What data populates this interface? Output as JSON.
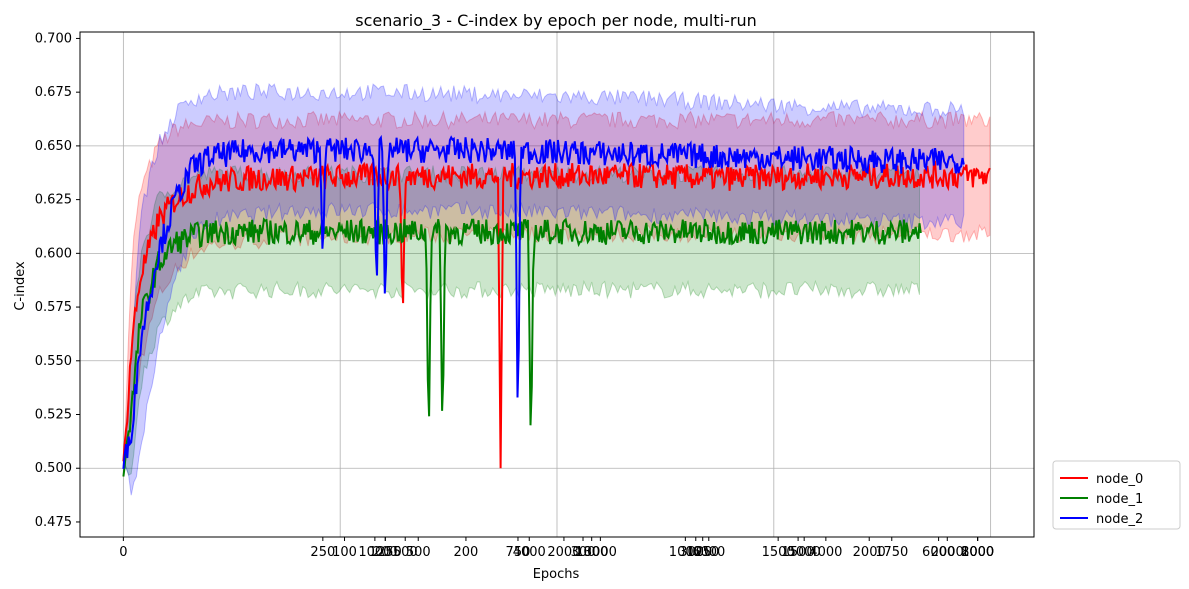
{
  "chart_data": {
    "type": "line",
    "title": "scenario_3 - C-index by epoch per node, multi-run",
    "xlabel": "Epochs",
    "ylabel": "C-index",
    "grid": true,
    "legend_placement": "outside-right-bottom",
    "x_ticks": [
      "0",
      "250",
      "100",
      "1000",
      "200",
      "500",
      "1250",
      "500",
      "200",
      "750",
      "4000",
      "2000",
      "300",
      "1000",
      "3000",
      "1000",
      "3000",
      "6000",
      "1250",
      "1500",
      "1500",
      "5000",
      "4000",
      "2000",
      "1750",
      "6000",
      "2000",
      "1000",
      "8000",
      "2000"
    ],
    "y_ticks": [
      "0.475",
      "0.500",
      "0.525",
      "0.550",
      "0.575",
      "0.600",
      "0.625",
      "0.650",
      "0.675",
      "0.700"
    ],
    "series": [
      {
        "name": "node_0",
        "color": "#ff0000",
        "x": [
          0,
          10,
          20,
          40,
          60,
          80,
          100,
          150,
          200,
          300,
          400,
          500,
          600,
          700,
          800,
          900,
          1000
        ],
        "mean": [
          0.5,
          0.56,
          0.59,
          0.615,
          0.625,
          0.63,
          0.633,
          0.635,
          0.635,
          0.636,
          0.636,
          0.636,
          0.636,
          0.635,
          0.636,
          0.636,
          0.636
        ],
        "upper": [
          0.5,
          0.6,
          0.63,
          0.65,
          0.658,
          0.66,
          0.661,
          0.662,
          0.662,
          0.662,
          0.662,
          0.662,
          0.662,
          0.662,
          0.662,
          0.662,
          0.662
        ],
        "lower": [
          0.5,
          0.52,
          0.55,
          0.58,
          0.592,
          0.6,
          0.604,
          0.606,
          0.607,
          0.608,
          0.609,
          0.609,
          0.609,
          0.609,
          0.609,
          0.609,
          0.609
        ]
      },
      {
        "name": "node_1",
        "color": "#008000",
        "x": [
          0,
          10,
          20,
          40,
          60,
          80,
          100,
          150,
          200,
          300,
          400,
          500,
          600,
          700,
          800,
          920
        ],
        "mean": [
          0.5,
          0.53,
          0.57,
          0.595,
          0.605,
          0.608,
          0.61,
          0.61,
          0.61,
          0.61,
          0.61,
          0.61,
          0.61,
          0.61,
          0.61,
          0.61
        ],
        "upper": [
          0.5,
          0.56,
          0.6,
          0.625,
          0.632,
          0.635,
          0.637,
          0.637,
          0.637,
          0.637,
          0.637,
          0.637,
          0.637,
          0.637,
          0.637,
          0.637
        ],
        "lower": [
          0.5,
          0.5,
          0.54,
          0.565,
          0.575,
          0.58,
          0.582,
          0.583,
          0.583,
          0.583,
          0.583,
          0.583,
          0.583,
          0.583,
          0.583,
          0.583
        ]
      },
      {
        "name": "node_2",
        "color": "#0000ff",
        "x": [
          0,
          10,
          20,
          40,
          60,
          80,
          100,
          150,
          200,
          300,
          400,
          500,
          600,
          700,
          800,
          900,
          970
        ],
        "mean": [
          0.5,
          0.52,
          0.56,
          0.6,
          0.625,
          0.64,
          0.645,
          0.648,
          0.648,
          0.648,
          0.648,
          0.647,
          0.646,
          0.645,
          0.644,
          0.643,
          0.643
        ],
        "upper": [
          0.5,
          0.56,
          0.62,
          0.65,
          0.665,
          0.672,
          0.674,
          0.675,
          0.675,
          0.675,
          0.674,
          0.673,
          0.672,
          0.67,
          0.668,
          0.667,
          0.667
        ],
        "lower": [
          0.5,
          0.49,
          0.51,
          0.555,
          0.59,
          0.608,
          0.615,
          0.618,
          0.62,
          0.62,
          0.62,
          0.619,
          0.618,
          0.617,
          0.616,
          0.615,
          0.615
        ]
      }
    ],
    "dips": [
      {
        "series": "node_2",
        "x": 230,
        "y": 0.593
      },
      {
        "series": "node_2",
        "x": 292,
        "y": 0.578
      },
      {
        "series": "node_2",
        "x": 302,
        "y": 0.568
      },
      {
        "series": "node_0",
        "x": 322,
        "y": 0.565
      },
      {
        "series": "node_1",
        "x": 352,
        "y": 0.507
      },
      {
        "series": "node_1",
        "x": 368,
        "y": 0.51
      },
      {
        "series": "node_0",
        "x": 435,
        "y": 0.5
      },
      {
        "series": "node_2",
        "x": 455,
        "y": 0.51
      },
      {
        "series": "node_1",
        "x": 470,
        "y": 0.502
      }
    ],
    "legend": [
      "node_0",
      "node_1",
      "node_2"
    ]
  }
}
